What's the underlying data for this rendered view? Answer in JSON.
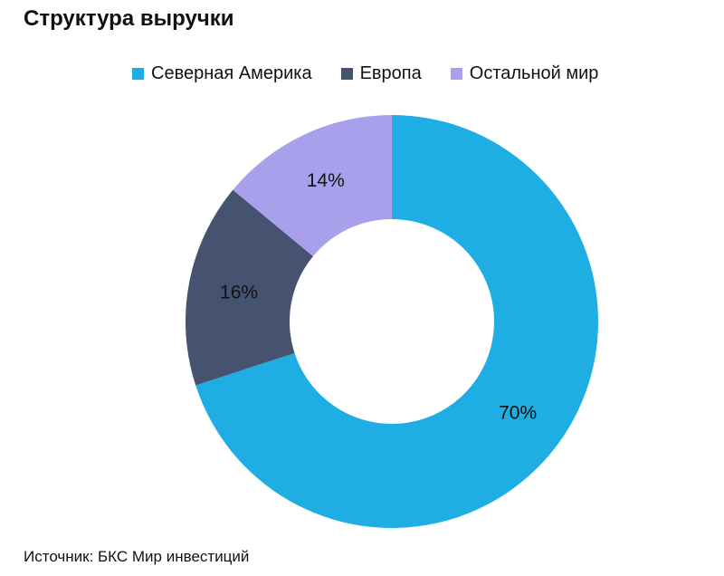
{
  "chart_data": {
    "type": "pie",
    "variant": "donut",
    "title": "Структура выручки",
    "categories": [
      "Северная Америка",
      "Европа",
      "Остальной мир"
    ],
    "values": [
      70,
      16,
      14
    ],
    "labels": [
      "70%",
      "16%",
      "14%"
    ],
    "colors": [
      "#1eaee3",
      "#455270",
      "#a9a0eb"
    ],
    "legend_position": "top",
    "source": "Источник: БКС Мир инвестиций"
  }
}
